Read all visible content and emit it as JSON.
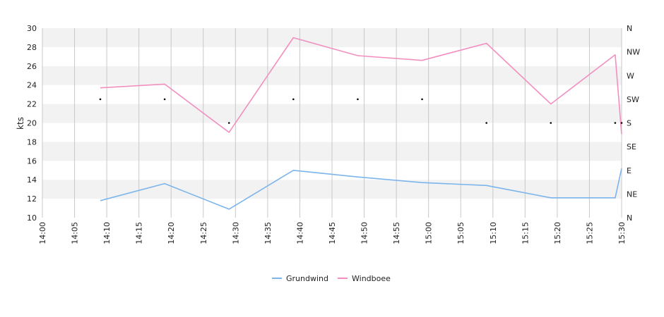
{
  "chart_data": {
    "type": "line",
    "ylabel": "kts",
    "ylim": [
      10,
      30
    ],
    "y_ticks": [
      10,
      12,
      14,
      16,
      18,
      20,
      22,
      24,
      26,
      28,
      30
    ],
    "x_ticks": [
      "14:00",
      "14:05",
      "14:10",
      "14:15",
      "14:20",
      "14:25",
      "14:30",
      "14:35",
      "14:40",
      "14:45",
      "14:50",
      "14:55",
      "15:00",
      "15:05",
      "15:10",
      "15:15",
      "15:20",
      "15:25",
      "15:30"
    ],
    "right_axis_ticks": [
      "N",
      "NE",
      "E",
      "SE",
      "S",
      "SW",
      "W",
      "NW",
      "N"
    ],
    "x": [
      "14:09",
      "14:19",
      "14:29",
      "14:39",
      "14:49",
      "14:59",
      "15:09",
      "15:19",
      "15:29",
      "15:30"
    ],
    "series": [
      {
        "name": "Grundwind",
        "color": "#7cb5ec",
        "values": [
          11.8,
          13.6,
          10.9,
          15.0,
          14.3,
          13.7,
          13.4,
          12.1,
          12.1,
          15.2
        ]
      },
      {
        "name": "Windboee",
        "color": "#f28fbf",
        "values": [
          23.7,
          24.1,
          19.0,
          29.0,
          27.1,
          26.6,
          28.4,
          22.0,
          27.2,
          18.8
        ]
      }
    ],
    "direction_markers": {
      "x": [
        "14:09",
        "14:19",
        "14:29",
        "14:39",
        "14:49",
        "14:59",
        "15:09",
        "15:19",
        "15:29",
        "15:30"
      ],
      "values": [
        "SW",
        "SW",
        "S",
        "SW",
        "SW",
        "SW",
        "S",
        "S",
        "S",
        "S"
      ]
    },
    "legend_position": "bottom-center",
    "grid": true
  }
}
